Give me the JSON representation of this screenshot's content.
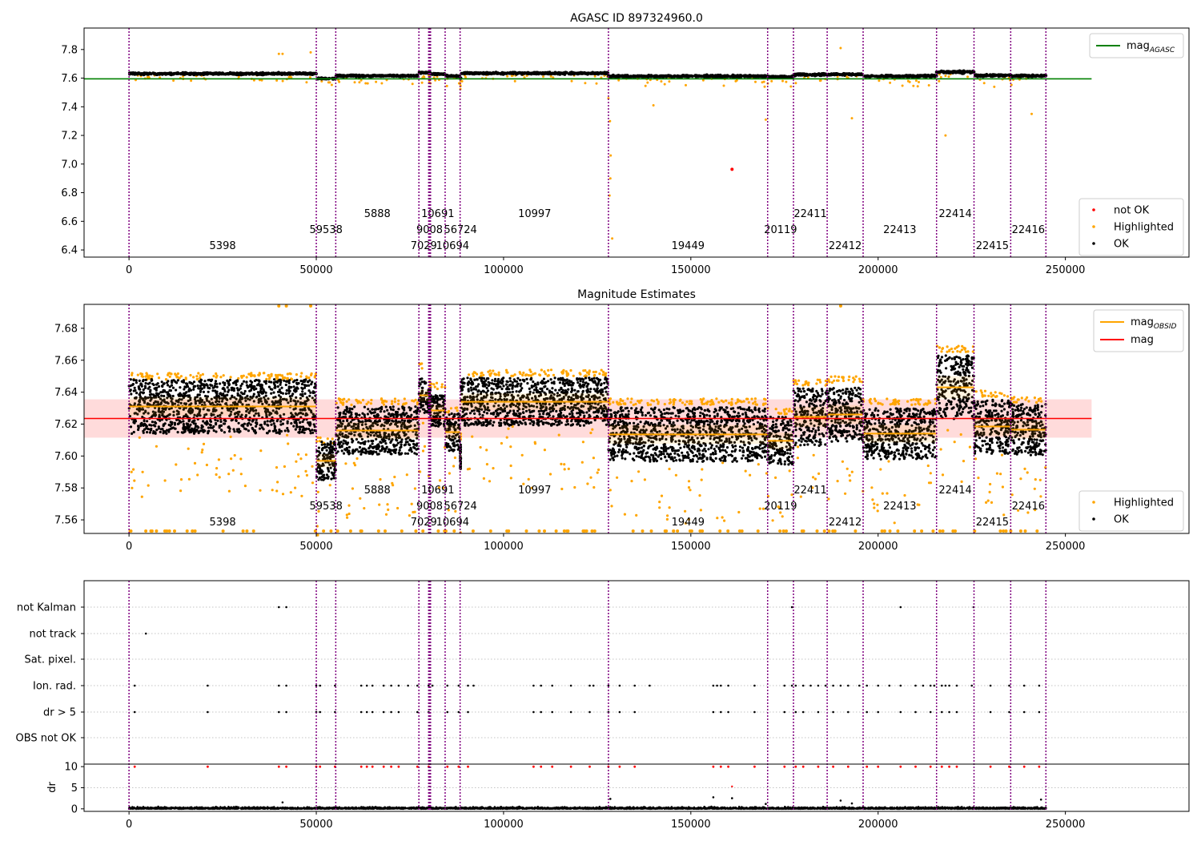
{
  "colors": {
    "ok": "#000000",
    "highlighted": "#ffa500",
    "not_ok": "#ff0000",
    "obsid_line": "#800080",
    "mag_agasc": "#008000",
    "mag_obsid": "#ffa500",
    "mag": "#ff0000",
    "band": "#ffcccc"
  },
  "chart_data": [
    {
      "type": "scatter",
      "title": "AGASC ID 897324960.0",
      "xlim": [
        -12000,
        283000
      ],
      "ylim": [
        6.35,
        7.95
      ],
      "xticks": [
        0,
        50000,
        100000,
        150000,
        200000,
        250000
      ],
      "yticks": [
        6.4,
        6.6,
        6.8,
        7.0,
        7.2,
        7.4,
        7.6,
        7.8
      ],
      "line_legend": [
        {
          "label": "mag",
          "sub": "AGASC",
          "color": "#008000"
        }
      ],
      "point_legend": [
        {
          "label": "not OK",
          "color": "#ff0000"
        },
        {
          "label": "Highlighted",
          "color": "#ffa500"
        },
        {
          "label": "OK",
          "color": "#000000"
        }
      ],
      "mag_agasc": 7.595
    },
    {
      "type": "scatter",
      "title": "Magnitude Estimates",
      "xlim": [
        -12000,
        283000
      ],
      "ylim": [
        7.5515,
        7.695
      ],
      "xticks": [
        0,
        50000,
        100000,
        150000,
        200000,
        250000
      ],
      "yticks": [
        7.56,
        7.58,
        7.6,
        7.62,
        7.64,
        7.66,
        7.68
      ],
      "line_legend": [
        {
          "label": "mag",
          "sub": "OBSID",
          "color": "#ffa500"
        },
        {
          "label": "mag",
          "sub": "",
          "color": "#ff0000"
        }
      ],
      "point_legend": [
        {
          "label": "Highlighted",
          "color": "#ffa500"
        },
        {
          "label": "OK",
          "color": "#000000"
        }
      ],
      "mag": 7.6235,
      "mag_band": [
        7.6115,
        7.6355
      ]
    },
    {
      "type": "scatter",
      "title": "",
      "xlim": [
        -12000,
        283000
      ],
      "xticks": [
        0,
        50000,
        100000,
        150000,
        200000,
        250000
      ],
      "flag_rows": [
        "not Kalman",
        "not track",
        "Sat. pixel.",
        "Ion. rad.",
        "dr > 5",
        "OBS not OK"
      ],
      "dr_yticks": [
        0,
        5,
        10
      ],
      "dr_ylabel": "dr",
      "dr_ylim": [
        -0.6,
        10.6
      ]
    }
  ],
  "obsids": [
    {
      "id": "5398",
      "start": 0,
      "end": 50000,
      "row": 0,
      "mag": 7.631,
      "width": 0.017,
      "hi": 7.648
    },
    {
      "id": "59538",
      "start": 50000,
      "end": 55200,
      "row": 1,
      "mag": 7.597,
      "width": 0.012,
      "hi": 7.608
    },
    {
      "id": "5888",
      "start": 55200,
      "end": 77400,
      "row": 2,
      "mag": 7.616,
      "width": 0.015,
      "hi": 7.632
    },
    {
      "id": "7029",
      "start": 77400,
      "end": 80000,
      "row": 0,
      "mag": 7.638,
      "width": 0.011,
      "hi": 7.654
    },
    {
      "id": "9008",
      "start": 80000,
      "end": 80500,
      "row": 1,
      "mag": 7.6345,
      "width": 0.008,
      "hi": 7.643
    },
    {
      "id": "10691",
      "start": 80500,
      "end": 84400,
      "row": 2,
      "mag": 7.6285,
      "width": 0.01,
      "hi": 7.642
    },
    {
      "id": "10694",
      "start": 84400,
      "end": 88400,
      "row": 0,
      "mag": 7.615,
      "width": 0.012,
      "hi": 7.627
    },
    {
      "id": "56724",
      "start": 88400,
      "end": 88600,
      "row": 1,
      "mag": 7.6,
      "width": 0.008,
      "hi": 7.61
    },
    {
      "id": "10997",
      "start": 88600,
      "end": 128000,
      "row": 2,
      "mag": 7.634,
      "width": 0.015,
      "hi": 7.65
    },
    {
      "id": "19449",
      "start": 128000,
      "end": 170500,
      "row": 0,
      "mag": 7.6135,
      "width": 0.017,
      "hi": 7.632
    },
    {
      "id": "20119",
      "start": 170500,
      "end": 177400,
      "row": 1,
      "mag": 7.6095,
      "width": 0.015,
      "hi": 7.626
    },
    {
      "id": "22411",
      "start": 177400,
      "end": 186400,
      "row": 2,
      "mag": 7.6245,
      "width": 0.018,
      "hi": 7.644
    },
    {
      "id": "22412",
      "start": 186400,
      "end": 196000,
      "row": 0,
      "mag": 7.626,
      "width": 0.017,
      "hi": 7.646
    },
    {
      "id": "22413",
      "start": 196000,
      "end": 215600,
      "row": 1,
      "mag": 7.614,
      "width": 0.016,
      "hi": 7.632
    },
    {
      "id": "22414",
      "start": 215600,
      "end": 225600,
      "row": 2,
      "mag": 7.643,
      "width": 0.02,
      "hi": 7.665
    },
    {
      "id": "22415",
      "start": 225600,
      "end": 235400,
      "row": 0,
      "mag": 7.6185,
      "width": 0.017,
      "hi": 7.637
    },
    {
      "id": "22416",
      "start": 235400,
      "end": 244800,
      "row": 1,
      "mag": 7.6165,
      "width": 0.016,
      "hi": 7.633
    }
  ],
  "obsid_line_times": [
    0,
    50000,
    55200,
    77400,
    80000,
    80300,
    80500,
    84400,
    88400,
    128000,
    170500,
    177400,
    186400,
    196000,
    215600,
    225600,
    235400,
    244800
  ],
  "not_ok_points": [
    {
      "time": 161000,
      "mag": 6.963
    }
  ],
  "outliers_top": [
    {
      "time": 40000,
      "mag": 7.77
    },
    {
      "time": 41000,
      "mag": 7.77
    },
    {
      "time": 48500,
      "mag": 7.78
    },
    {
      "time": 190000,
      "mag": 7.81
    },
    {
      "time": 128000,
      "mag": 7.46
    },
    {
      "time": 128400,
      "mag": 7.3
    },
    {
      "time": 128600,
      "mag": 7.06
    },
    {
      "time": 128500,
      "mag": 6.9
    },
    {
      "time": 128300,
      "mag": 6.78
    },
    {
      "time": 129000,
      "mag": 6.48
    },
    {
      "time": 140000,
      "mag": 7.41
    },
    {
      "time": 218000,
      "mag": 7.2
    },
    {
      "time": 170000,
      "mag": 7.31
    },
    {
      "time": 193000,
      "mag": 7.32
    },
    {
      "time": 241000,
      "mag": 7.35
    }
  ],
  "flag_points": {
    "not Kalman": [
      40000,
      42000,
      177000,
      206000,
      225500
    ],
    "not track": [
      4500
    ],
    "Ion. rad.": [
      1500,
      21000,
      40000,
      42000,
      50000,
      51000,
      55000,
      62000,
      63500,
      65000,
      68000,
      70000,
      72000,
      74500,
      77000,
      80000,
      81000,
      85000,
      88000,
      90500,
      92000,
      108000,
      110000,
      113000,
      118000,
      123000,
      124000,
      128000,
      131000,
      135000,
      139000,
      156000,
      157000,
      158000,
      160000,
      167000,
      175000,
      177000,
      178000,
      180000,
      182000,
      184000,
      186000,
      188000,
      190000,
      192000,
      195000,
      197000,
      200000,
      203000,
      206000,
      210000,
      212000,
      214000,
      215000,
      217000,
      218000,
      219000,
      221000,
      225000,
      230000,
      235000,
      239000,
      243000
    ],
    "dr > 5": [
      1500,
      21000,
      40000,
      42000,
      50000,
      51000,
      55000,
      62000,
      63500,
      65000,
      68000,
      70000,
      72000,
      77000,
      80000,
      85000,
      88000,
      90500,
      108000,
      110000,
      113000,
      118000,
      123000,
      128000,
      131000,
      135000,
      156000,
      158000,
      160000,
      167000,
      175000,
      178000,
      180000,
      184000,
      188000,
      192000,
      197000,
      200000,
      206000,
      210000,
      214000,
      217000,
      219000,
      221000,
      230000,
      235000,
      239000,
      243000
    ]
  }
}
